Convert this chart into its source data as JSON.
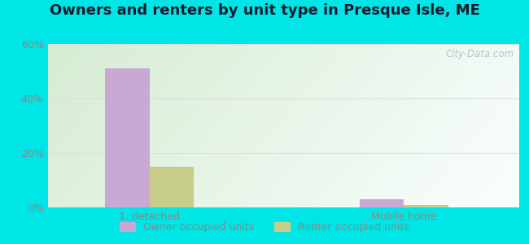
{
  "title": "Owners and renters by unit type in Presque Isle, ME",
  "categories": [
    "1, detached",
    "Mobile home"
  ],
  "owner_values": [
    51,
    3
  ],
  "renter_values": [
    15,
    1
  ],
  "owner_color": "#c9a8d4",
  "renter_color": "#c8cc8a",
  "ylim": [
    0,
    60
  ],
  "yticks": [
    0,
    20,
    40,
    60
  ],
  "ytick_labels": [
    "0%",
    "20%",
    "40%",
    "60%"
  ],
  "bar_width": 0.35,
  "bg_color_topleft": "#d6ecd2",
  "bg_color_topright": "#e8f5f0",
  "bg_color_bottomleft": "#e4f2e0",
  "bg_color_bottomright": "#f0faf8",
  "outer_color": "#00e5e5",
  "legend_labels": [
    "Owner occupied units",
    "Renter occupied units"
  ],
  "watermark": "City-Data.com",
  "title_fontsize": 13,
  "axis_label_color": "#888888",
  "grid_color": "#dddddd"
}
